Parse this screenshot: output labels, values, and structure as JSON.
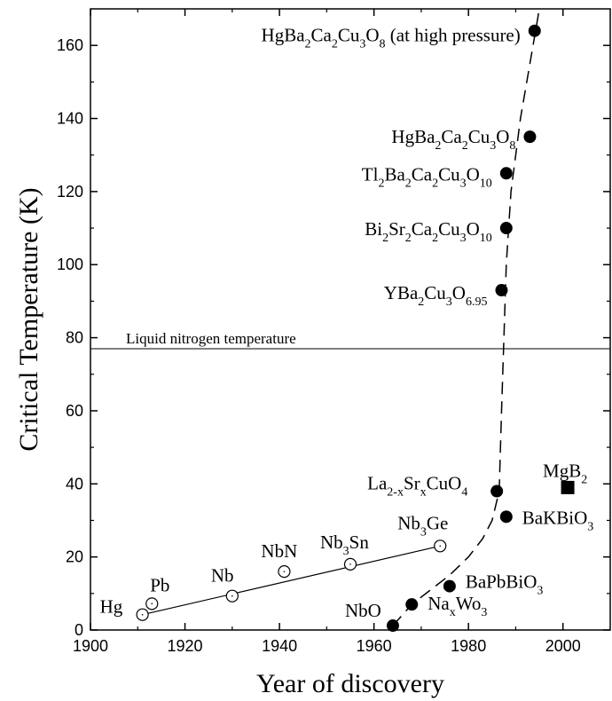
{
  "chart_data": {
    "type": "scatter",
    "title": "",
    "xlabel": "Year of discovery",
    "ylabel": "Critical Temperature (K)",
    "xlim": [
      1900,
      2010
    ],
    "ylim": [
      0,
      170
    ],
    "x_ticks": [
      1900,
      1920,
      1940,
      1960,
      1980,
      2000
    ],
    "y_ticks": [
      0,
      20,
      40,
      60,
      80,
      100,
      120,
      140,
      160
    ],
    "grid": false,
    "reference_lines": [
      {
        "label": "Liquid nitrogen temperature",
        "y": 77
      }
    ],
    "series": [
      {
        "marker": "open-circle",
        "trend": "solid-line",
        "points": [
          {
            "x": 1911,
            "y": 4.2,
            "label": [
              {
                "t": "Hg"
              }
            ]
          },
          {
            "x": 1913,
            "y": 7.2,
            "label": [
              {
                "t": "Pb"
              }
            ]
          },
          {
            "x": 1930,
            "y": 9.3,
            "label": [
              {
                "t": "Nb"
              }
            ]
          },
          {
            "x": 1941,
            "y": 16,
            "label": [
              {
                "t": "NbN"
              }
            ]
          },
          {
            "x": 1955,
            "y": 18,
            "label": [
              {
                "t": "Nb"
              },
              {
                "t": "3",
                "s": "sub"
              },
              {
                "t": "Sn"
              }
            ]
          },
          {
            "x": 1974,
            "y": 23,
            "label": [
              {
                "t": "Nb"
              },
              {
                "t": "3",
                "s": "sub"
              },
              {
                "t": "Ge"
              }
            ]
          }
        ]
      },
      {
        "marker": "filled-circle",
        "trend": "dashed-curve",
        "points": [
          {
            "x": 1964,
            "y": 1.2,
            "label": [
              {
                "t": "NbO"
              }
            ]
          },
          {
            "x": 1968,
            "y": 7,
            "label": [
              {
                "t": "Na"
              },
              {
                "t": "x",
                "s": "sub"
              },
              {
                "t": "Wo"
              },
              {
                "t": "3",
                "s": "sub"
              }
            ]
          },
          {
            "x": 1976,
            "y": 12,
            "label": [
              {
                "t": "BaPbBiO"
              },
              {
                "t": "3",
                "s": "sub"
              }
            ]
          },
          {
            "x": 1986,
            "y": 38,
            "label": [
              {
                "t": "La"
              },
              {
                "t": "2-x",
                "s": "sub"
              },
              {
                "t": "Sr"
              },
              {
                "t": "x",
                "s": "sub"
              },
              {
                "t": "CuO"
              },
              {
                "t": "4",
                "s": "sub"
              }
            ]
          },
          {
            "x": 1988,
            "y": 31,
            "label": [
              {
                "t": "BaKBiO"
              },
              {
                "t": "3",
                "s": "sub"
              }
            ]
          },
          {
            "x": 1987,
            "y": 93,
            "label": [
              {
                "t": "YBa"
              },
              {
                "t": "2",
                "s": "sub"
              },
              {
                "t": "Cu"
              },
              {
                "t": "3",
                "s": "sub"
              },
              {
                "t": "O"
              },
              {
                "t": "6.95",
                "s": "sub"
              }
            ]
          },
          {
            "x": 1988,
            "y": 110,
            "label": [
              {
                "t": "Bi"
              },
              {
                "t": "2",
                "s": "sub"
              },
              {
                "t": "Sr"
              },
              {
                "t": "2",
                "s": "sub"
              },
              {
                "t": "Ca"
              },
              {
                "t": "2",
                "s": "sub"
              },
              {
                "t": "Cu"
              },
              {
                "t": "3",
                "s": "sub"
              },
              {
                "t": "O"
              },
              {
                "t": "10",
                "s": "sub"
              }
            ]
          },
          {
            "x": 1988,
            "y": 125,
            "label": [
              {
                "t": "Tl"
              },
              {
                "t": "2",
                "s": "sub"
              },
              {
                "t": "Ba"
              },
              {
                "t": "2",
                "s": "sub"
              },
              {
                "t": "Ca"
              },
              {
                "t": "2",
                "s": "sub"
              },
              {
                "t": "Cu"
              },
              {
                "t": "3",
                "s": "sub"
              },
              {
                "t": "O"
              },
              {
                "t": "10",
                "s": "sub"
              }
            ]
          },
          {
            "x": 1993,
            "y": 135,
            "label": [
              {
                "t": "HgBa"
              },
              {
                "t": "2",
                "s": "sub"
              },
              {
                "t": "Ca"
              },
              {
                "t": "2",
                "s": "sub"
              },
              {
                "t": "Cu"
              },
              {
                "t": "3",
                "s": "sub"
              },
              {
                "t": "O"
              },
              {
                "t": "8",
                "s": "sub"
              }
            ]
          },
          {
            "x": 1994,
            "y": 164,
            "label": [
              {
                "t": "HgBa"
              },
              {
                "t": "2",
                "s": "sub"
              },
              {
                "t": "Ca"
              },
              {
                "t": "2",
                "s": "sub"
              },
              {
                "t": "Cu"
              },
              {
                "t": "3",
                "s": "sub"
              },
              {
                "t": "O"
              },
              {
                "t": "8",
                "s": "sub"
              },
              {
                "t": " (at high pressure)"
              }
            ]
          }
        ]
      },
      {
        "marker": "filled-square",
        "trend": "none",
        "points": [
          {
            "x": 2001,
            "y": 39,
            "label": [
              {
                "t": "MgB"
              },
              {
                "t": "2",
                "s": "sub"
              }
            ]
          }
        ]
      }
    ],
    "dashed_curve_points": [
      [
        1964,
        1.2
      ],
      [
        1968,
        7
      ],
      [
        1972,
        11
      ],
      [
        1976,
        15
      ],
      [
        1980,
        20
      ],
      [
        1983,
        25
      ],
      [
        1985,
        30
      ],
      [
        1986.5,
        38
      ],
      [
        1987,
        60
      ],
      [
        1987.5,
        80
      ],
      [
        1988,
        100
      ],
      [
        1989,
        120
      ],
      [
        1991,
        140
      ],
      [
        1993,
        155
      ],
      [
        1995,
        170
      ]
    ]
  }
}
